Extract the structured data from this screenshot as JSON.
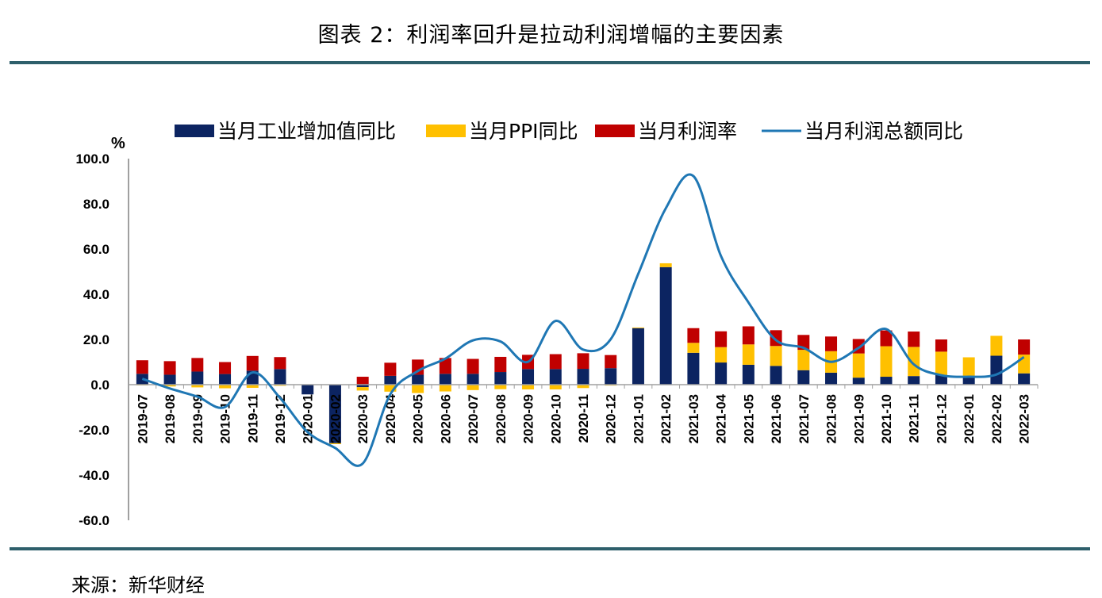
{
  "header": {
    "title": "图表 2：利润率回升是拉动利润增幅的主要因素"
  },
  "footer": {
    "source": "来源：新华财经"
  },
  "colors": {
    "industrial": "#0c2461",
    "ppi": "#ffc000",
    "profit_rate": "#c00000",
    "profit_total": "#1f77b4",
    "rule": "#2e5f6b"
  },
  "chart_data": {
    "type": "bar",
    "stacked": true,
    "ylabel": "%",
    "ylim": [
      -60,
      100
    ],
    "yticks": [
      "100.0",
      "80.0",
      "60.0",
      "40.0",
      "20.0",
      "0.0",
      "-20.0",
      "-40.0",
      "-60.0"
    ],
    "ytick_values": [
      100,
      80,
      60,
      40,
      20,
      0,
      -20,
      -40,
      -60
    ],
    "legend_position": "top",
    "categories": [
      "2019-07",
      "2019-08",
      "2019-09",
      "2019-10",
      "2019-11",
      "2019-12",
      "2020-01",
      "2020-02",
      "2020-03",
      "2020-04",
      "2020-05",
      "2020-06",
      "2020-07",
      "2020-08",
      "2020-09",
      "2020-10",
      "2020-11",
      "2020-12",
      "2021-01",
      "2021-02",
      "2021-03",
      "2021-04",
      "2021-05",
      "2021-06",
      "2021-07",
      "2021-08",
      "2021-09",
      "2021-10",
      "2021-11",
      "2021-12",
      "2022-01",
      "2022-02",
      "2022-03"
    ],
    "series": [
      {
        "name": "当月工业增加值同比",
        "kind": "bar",
        "color": "#0c2461",
        "values": [
          4.8,
          4.4,
          5.8,
          4.7,
          6.2,
          6.9,
          -4.3,
          -25.9,
          -1.1,
          3.9,
          4.4,
          4.8,
          4.8,
          5.6,
          6.9,
          6.9,
          7.0,
          7.3,
          25.0,
          52.0,
          14.1,
          9.8,
          8.8,
          8.3,
          6.4,
          5.3,
          3.1,
          3.5,
          3.8,
          4.3,
          3.0,
          12.8,
          5.0
        ]
      },
      {
        "name": "当月PPI同比",
        "kind": "bar",
        "color": "#ffc000",
        "values": [
          -0.3,
          -0.8,
          -1.2,
          -1.6,
          -1.4,
          -0.5,
          0.1,
          -0.4,
          -1.5,
          -3.1,
          -3.7,
          -3.0,
          -2.4,
          -2.0,
          -2.1,
          -2.1,
          -1.5,
          -0.4,
          0.3,
          1.7,
          4.4,
          6.8,
          9.0,
          8.8,
          9.0,
          9.5,
          10.7,
          13.5,
          12.9,
          10.3,
          9.1,
          8.8,
          8.3
        ]
      },
      {
        "name": "当月利润率",
        "kind": "bar",
        "color": "#c00000",
        "values": [
          6.0,
          6.0,
          6.0,
          5.3,
          6.5,
          5.3,
          0.0,
          0.0,
          3.5,
          5.8,
          6.7,
          7.0,
          6.6,
          6.7,
          6.3,
          6.6,
          6.9,
          5.8,
          0.0,
          0.0,
          6.5,
          7.0,
          8.0,
          7.0,
          6.6,
          6.5,
          6.4,
          7.0,
          6.8,
          5.4,
          0.0,
          0.0,
          6.7
        ]
      },
      {
        "name": "当月利润总额同比",
        "kind": "line",
        "color": "#1f77b4",
        "values": [
          2.6,
          -1.7,
          -5.3,
          -9.9,
          5.4,
          -5.9,
          -21.0,
          -28.0,
          -34.9,
          -4.3,
          6.0,
          11.5,
          19.6,
          19.1,
          10.1,
          28.2,
          15.5,
          20.1,
          49.0,
          78.0,
          92.3,
          57.0,
          36.4,
          19.7,
          16.3,
          10.1,
          16.3,
          24.6,
          9.0,
          4.2,
          3.5,
          4.5,
          12.2
        ]
      }
    ]
  }
}
